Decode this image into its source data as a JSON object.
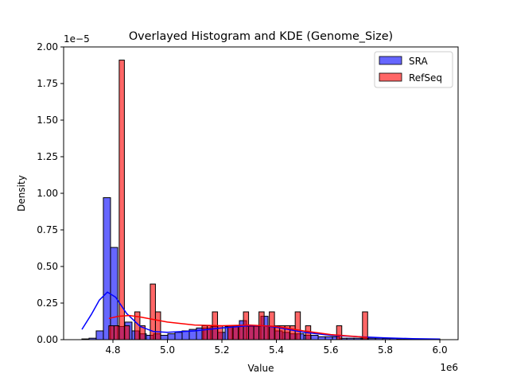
{
  "chart_data": {
    "type": "histogram+kde",
    "title": "Overlayed Histogram and KDE (Genome_Size)",
    "xlabel": "Value",
    "ylabel": "Density",
    "x_offset_label": "1e6",
    "y_offset_label": "1e−5",
    "xlim": [
      4.619,
      6.067
    ],
    "ylim": [
      0,
      2.0
    ],
    "xticks": [
      4.8,
      5.0,
      5.2,
      5.4,
      5.6,
      5.8,
      6.0
    ],
    "xtick_labels": [
      "4.8",
      "5.0",
      "5.2",
      "5.4",
      "5.6",
      "5.8",
      "6.0"
    ],
    "yticks": [
      0,
      0.25,
      0.5,
      0.75,
      1.0,
      1.25,
      1.5,
      1.75,
      2.0
    ],
    "ytick_labels": [
      "0.00",
      "0.25",
      "0.50",
      "0.75",
      "1.00",
      "1.25",
      "1.50",
      "1.75",
      "2.00"
    ],
    "grid": false,
    "legend_position": "top-right",
    "series": [
      {
        "name": "SRA",
        "color": "#0000ff",
        "bin_start": 4.686,
        "bin_width": 0.02628,
        "values": [
          0.005,
          0.01,
          0.06,
          0.97,
          0.63,
          0.09,
          0.12,
          0.06,
          0.04,
          0.03,
          0.04,
          0.03,
          0.04,
          0.05,
          0.06,
          0.07,
          0.08,
          0.08,
          0.09,
          0.05,
          0.09,
          0.09,
          0.13,
          0.09,
          0.09,
          0.16,
          0.09,
          0.06,
          0.05,
          0.04,
          0.04,
          0.03,
          0.03,
          0.02,
          0.02,
          0.02,
          0.01,
          0.01,
          0.01,
          0.01,
          0.01,
          0.01,
          0.008,
          0.008,
          0.006,
          0.006,
          0.005,
          0.005,
          0.005,
          0.005
        ],
        "kde": [
          [
            4.686,
            0.07
          ],
          [
            4.72,
            0.17
          ],
          [
            4.75,
            0.27
          ],
          [
            4.78,
            0.325
          ],
          [
            4.81,
            0.29
          ],
          [
            4.85,
            0.18
          ],
          [
            4.9,
            0.09
          ],
          [
            4.95,
            0.055
          ],
          [
            5.0,
            0.05
          ],
          [
            5.1,
            0.06
          ],
          [
            5.2,
            0.08
          ],
          [
            5.3,
            0.095
          ],
          [
            5.35,
            0.095
          ],
          [
            5.4,
            0.085
          ],
          [
            5.5,
            0.05
          ],
          [
            5.6,
            0.03
          ],
          [
            5.7,
            0.02
          ],
          [
            5.8,
            0.012
          ],
          [
            5.9,
            0.007
          ],
          [
            6.0,
            0.004
          ]
        ]
      },
      {
        "name": "RefSeq",
        "color": "#ff0000",
        "bin_start": 4.785,
        "bin_width": 0.019,
        "values": [
          0.095,
          0.095,
          1.91,
          0.095,
          0,
          0.19,
          0.095,
          0,
          0.38,
          0.19,
          0,
          0,
          0,
          0,
          0,
          0,
          0,
          0,
          0.095,
          0.095,
          0.19,
          0.095,
          0,
          0.095,
          0.095,
          0.095,
          0.19,
          0.095,
          0.095,
          0.19,
          0.095,
          0.19,
          0.095,
          0.095,
          0.095,
          0.095,
          0.19,
          0,
          0.095,
          0,
          0,
          0,
          0,
          0,
          0.095,
          0,
          0,
          0,
          0,
          0.19
        ],
        "kde": [
          [
            4.785,
            0.145
          ],
          [
            4.82,
            0.16
          ],
          [
            4.86,
            0.165
          ],
          [
            4.9,
            0.155
          ],
          [
            5.0,
            0.12
          ],
          [
            5.1,
            0.1
          ],
          [
            5.2,
            0.095
          ],
          [
            5.3,
            0.1
          ],
          [
            5.4,
            0.09
          ],
          [
            5.5,
            0.06
          ],
          [
            5.6,
            0.035
          ],
          [
            5.7,
            0.02
          ],
          [
            5.735,
            0.015
          ]
        ]
      }
    ]
  }
}
